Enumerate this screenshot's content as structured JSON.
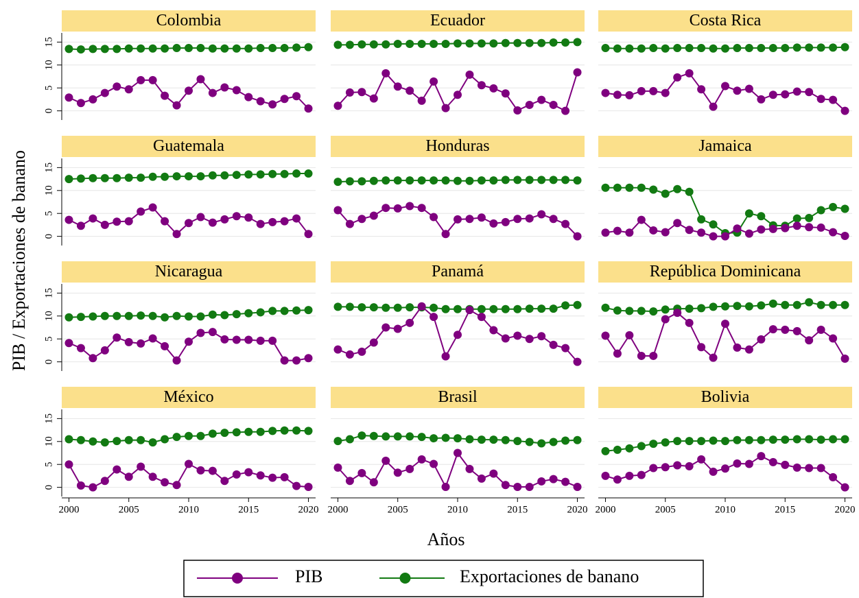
{
  "chart_data": {
    "type": "line",
    "y_label": "PIB / Exportaciones de banano",
    "x_label": "Años",
    "x": [
      2000,
      2001,
      2002,
      2003,
      2004,
      2005,
      2006,
      2007,
      2008,
      2009,
      2010,
      2011,
      2012,
      2013,
      2014,
      2015,
      2016,
      2017,
      2018,
      2019,
      2020
    ],
    "xlim": [
      1999.4,
      2020.6
    ],
    "xticks": [
      2000,
      2005,
      2010,
      2015,
      2020
    ],
    "ylim": [
      -2,
      17
    ],
    "yticks": [
      0,
      5,
      10,
      15
    ],
    "grid": true,
    "series": [
      {
        "name": "PIB",
        "color": "#7f007f"
      },
      {
        "name": "Exportaciones de banano",
        "color": "#127a12"
      }
    ],
    "panels": [
      {
        "title": "Colombia",
        "series": [
          {
            "values": [
              2.9,
              1.7,
              2.5,
              3.9,
              5.3,
              4.7,
              6.7,
              6.7,
              3.3,
              1.2,
              4.4,
              6.9,
              3.9,
              5.1,
              4.5,
              3.0,
              2.1,
              1.4,
              2.6,
              3.2,
              0.5
            ]
          },
          {
            "values": [
              13.5,
              13.4,
              13.5,
              13.5,
              13.5,
              13.6,
              13.6,
              13.6,
              13.6,
              13.7,
              13.7,
              13.7,
              13.6,
              13.6,
              13.6,
              13.6,
              13.7,
              13.7,
              13.7,
              13.8,
              13.9
            ]
          }
        ]
      },
      {
        "title": "Ecuador",
        "series": [
          {
            "values": [
              1.1,
              4.0,
              4.1,
              2.7,
              8.2,
              5.3,
              4.4,
              2.2,
              6.4,
              0.6,
              3.5,
              7.9,
              5.6,
              4.9,
              3.8,
              0.1,
              1.3,
              2.4,
              1.3,
              0.0,
              8.4
            ]
          },
          {
            "values": [
              14.4,
              14.4,
              14.5,
              14.5,
              14.5,
              14.6,
              14.6,
              14.6,
              14.6,
              14.6,
              14.7,
              14.7,
              14.7,
              14.7,
              14.8,
              14.8,
              14.8,
              14.8,
              14.9,
              14.9,
              15.0
            ]
          }
        ]
      },
      {
        "title": "Costa Rica",
        "series": [
          {
            "values": [
              3.9,
              3.5,
              3.4,
              4.3,
              4.3,
              3.9,
              7.3,
              8.2,
              4.7,
              0.9,
              5.4,
              4.4,
              4.8,
              2.5,
              3.5,
              3.6,
              4.2,
              4.1,
              2.6,
              2.4,
              0.0
            ]
          },
          {
            "values": [
              13.7,
              13.6,
              13.6,
              13.6,
              13.7,
              13.6,
              13.7,
              13.7,
              13.7,
              13.6,
              13.6,
              13.7,
              13.7,
              13.7,
              13.7,
              13.7,
              13.8,
              13.8,
              13.8,
              13.8,
              13.9
            ]
          }
        ]
      },
      {
        "title": "Guatemala",
        "series": [
          {
            "values": [
              3.6,
              2.3,
              3.9,
              2.5,
              3.2,
              3.3,
              5.4,
              6.3,
              3.3,
              0.5,
              2.9,
              4.2,
              3.0,
              3.7,
              4.4,
              4.1,
              2.7,
              3.1,
              3.3,
              3.9,
              0.5
            ]
          },
          {
            "values": [
              12.5,
              12.6,
              12.7,
              12.7,
              12.7,
              12.8,
              12.8,
              13.0,
              13.0,
              13.1,
              13.1,
              13.1,
              13.3,
              13.3,
              13.4,
              13.5,
              13.5,
              13.6,
              13.6,
              13.7,
              13.7
            ]
          }
        ]
      },
      {
        "title": "Honduras",
        "series": [
          {
            "values": [
              5.7,
              2.7,
              3.8,
              4.5,
              6.2,
              6.1,
              6.6,
              6.2,
              4.2,
              0.5,
              3.7,
              3.8,
              4.1,
              2.8,
              3.1,
              3.8,
              3.9,
              4.8,
              3.8,
              2.7,
              0.0
            ]
          },
          {
            "values": [
              11.9,
              12.0,
              12.0,
              12.1,
              12.2,
              12.2,
              12.2,
              12.2,
              12.2,
              12.2,
              12.1,
              12.1,
              12.2,
              12.2,
              12.3,
              12.3,
              12.3,
              12.3,
              12.3,
              12.3,
              12.2
            ]
          }
        ]
      },
      {
        "title": "Jamaica",
        "series": [
          {
            "values": [
              0.8,
              1.2,
              0.8,
              3.6,
              1.3,
              0.9,
              2.9,
              1.4,
              0.8,
              0.0,
              0.0,
              1.7,
              0.6,
              1.5,
              1.6,
              1.8,
              2.3,
              2.0,
              1.9,
              0.9,
              0.1
            ]
          },
          {
            "values": [
              10.6,
              10.6,
              10.6,
              10.6,
              10.2,
              9.3,
              10.3,
              9.7,
              3.7,
              2.6,
              0.7,
              0.8,
              5.0,
              4.4,
              2.4,
              2.3,
              3.9,
              4.0,
              5.7,
              6.4,
              6.0
            ]
          }
        ]
      },
      {
        "title": "Nicaragua",
        "series": [
          {
            "values": [
              4.1,
              3.0,
              0.8,
              2.5,
              5.3,
              4.3,
              4.0,
              5.1,
              3.4,
              0.3,
              4.4,
              6.3,
              6.5,
              4.9,
              4.8,
              4.8,
              4.6,
              4.6,
              0.3,
              0.3,
              0.8
            ]
          },
          {
            "values": [
              9.7,
              9.8,
              9.9,
              10.0,
              10.0,
              10.0,
              10.1,
              10.0,
              9.7,
              10.0,
              9.9,
              9.9,
              10.3,
              10.2,
              10.4,
              10.6,
              10.8,
              11.1,
              11.1,
              11.2,
              11.3
            ]
          }
        ]
      },
      {
        "title": "Panamá",
        "series": [
          {
            "values": [
              2.7,
              1.6,
              2.2,
              4.2,
              7.5,
              7.2,
              8.5,
              12.1,
              9.8,
              1.2,
              5.9,
              11.3,
              9.8,
              6.9,
              5.1,
              5.7,
              5.0,
              5.6,
              3.7,
              3.0,
              0.0
            ]
          },
          {
            "values": [
              12.0,
              12.0,
              11.9,
              11.9,
              11.8,
              11.8,
              11.9,
              11.9,
              11.8,
              11.5,
              11.5,
              11.5,
              11.5,
              11.5,
              11.5,
              11.5,
              11.6,
              11.6,
              11.6,
              12.3,
              12.4
            ]
          }
        ]
      },
      {
        "title": "República Dominicana",
        "series": [
          {
            "values": [
              5.7,
              1.8,
              5.8,
              1.3,
              1.3,
              9.3,
              10.7,
              8.5,
              3.2,
              0.9,
              8.3,
              3.1,
              2.7,
              4.9,
              7.1,
              7.0,
              6.7,
              4.7,
              7.0,
              5.1,
              0.7
            ]
          },
          {
            "values": [
              11.8,
              11.2,
              11.1,
              11.1,
              11.0,
              11.4,
              11.6,
              11.6,
              11.7,
              12.0,
              12.1,
              12.2,
              12.1,
              12.3,
              12.7,
              12.4,
              12.4,
              13.0,
              12.4,
              12.4,
              12.4
            ]
          }
        ]
      },
      {
        "title": "México",
        "series": [
          {
            "values": [
              5.0,
              0.4,
              0.0,
              1.4,
              3.9,
              2.3,
              4.5,
              2.3,
              1.1,
              0.5,
              5.1,
              3.7,
              3.6,
              1.4,
              2.8,
              3.3,
              2.6,
              2.1,
              2.2,
              0.3,
              0.1
            ]
          },
          {
            "values": [
              10.5,
              10.3,
              10.0,
              9.8,
              10.1,
              10.3,
              10.3,
              9.8,
              10.5,
              11.0,
              11.2,
              11.2,
              11.7,
              11.9,
              12.0,
              12.1,
              12.1,
              12.3,
              12.4,
              12.4,
              12.3
            ]
          }
        ]
      },
      {
        "title": "Brasil",
        "series": [
          {
            "values": [
              4.3,
              1.4,
              3.1,
              1.1,
              5.8,
              3.2,
              4.0,
              6.1,
              5.1,
              0.1,
              7.5,
              4.0,
              1.9,
              3.0,
              0.5,
              0.1,
              0.1,
              1.3,
              1.8,
              1.2,
              0.1
            ]
          },
          {
            "values": [
              10.1,
              10.5,
              11.3,
              11.2,
              11.1,
              11.1,
              11.1,
              11.0,
              10.7,
              10.8,
              10.7,
              10.5,
              10.4,
              10.4,
              10.3,
              10.1,
              9.9,
              9.6,
              9.9,
              10.2,
              10.3
            ]
          }
        ]
      },
      {
        "title": "Bolivia",
        "series": [
          {
            "values": [
              2.5,
              1.7,
              2.5,
              2.7,
              4.2,
              4.4,
              4.8,
              4.6,
              6.1,
              3.4,
              4.1,
              5.2,
              5.1,
              6.8,
              5.5,
              4.9,
              4.3,
              4.2,
              4.2,
              2.2,
              0.0
            ]
          },
          {
            "values": [
              7.9,
              8.2,
              8.5,
              9.0,
              9.5,
              9.8,
              10.1,
              10.1,
              10.1,
              10.2,
              10.1,
              10.3,
              10.3,
              10.3,
              10.4,
              10.4,
              10.5,
              10.5,
              10.4,
              10.5,
              10.5
            ]
          }
        ]
      }
    ]
  }
}
